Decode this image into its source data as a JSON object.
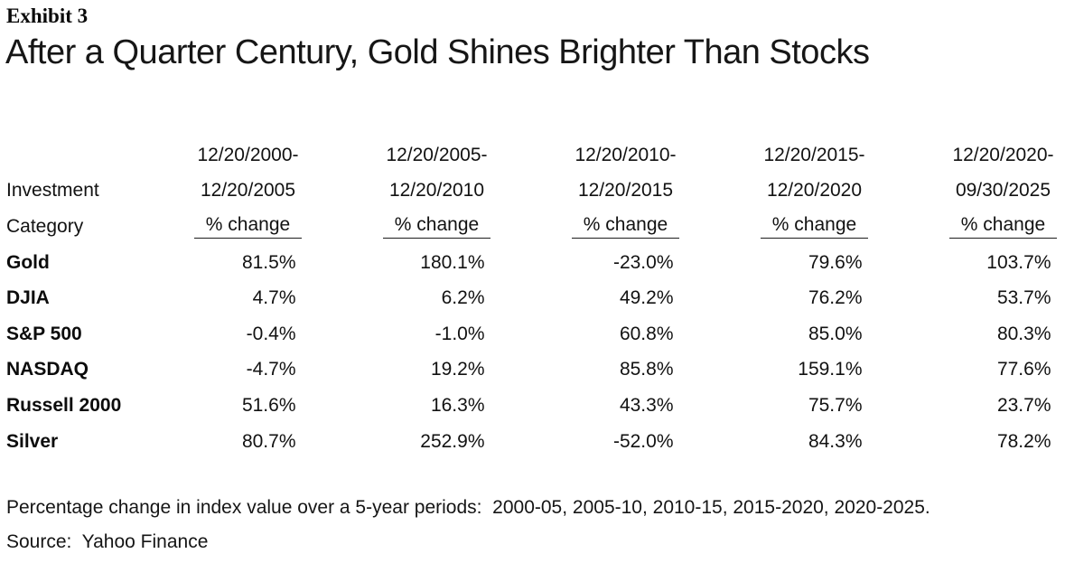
{
  "exhibit": {
    "label": "Exhibit 3"
  },
  "title": "After a Quarter Century, Gold Shines Brighter Than Stocks",
  "table": {
    "row_header": {
      "line1": "Investment",
      "line2": "Category"
    },
    "pct_label": "% change",
    "periods": [
      {
        "line1": "12/20/2000-",
        "line2": "12/20/2005"
      },
      {
        "line1": "12/20/2005-",
        "line2": "12/20/2010"
      },
      {
        "line1": "12/20/2010-",
        "line2": "12/20/2015"
      },
      {
        "line1": "12/20/2015-",
        "line2": "12/20/2020"
      },
      {
        "line1": "12/20/2020-",
        "line2": "09/30/2025"
      }
    ],
    "rows": [
      {
        "name": "Gold",
        "values": [
          "81.5%",
          "180.1%",
          "-23.0%",
          "79.6%",
          "103.7%"
        ]
      },
      {
        "name": "DJIA",
        "values": [
          "4.7%",
          "6.2%",
          "49.2%",
          "76.2%",
          "53.7%"
        ]
      },
      {
        "name": "S&P 500",
        "values": [
          "-0.4%",
          "-1.0%",
          "60.8%",
          "85.0%",
          "80.3%"
        ]
      },
      {
        "name": "NASDAQ",
        "values": [
          "-4.7%",
          "19.2%",
          "85.8%",
          "159.1%",
          "77.6%"
        ]
      },
      {
        "name": "Russell 2000",
        "values": [
          "51.6%",
          "16.3%",
          "43.3%",
          "75.7%",
          "23.7%"
        ]
      },
      {
        "name": "Silver",
        "values": [
          "80.7%",
          "252.9%",
          "-52.0%",
          "84.3%",
          "78.2%"
        ]
      }
    ]
  },
  "footnote": "Percentage change in index value over a 5-year periods:  2000-05, 2005-10, 2010-15, 2015-2020, 2020-2025.",
  "source": "Source:  Yahoo Finance",
  "colors": {
    "background": "#ffffff",
    "text": "#121212"
  },
  "chart_data": {
    "type": "table",
    "title": "After a Quarter Century, Gold Shines Brighter Than Stocks",
    "exhibit": "Exhibit 3",
    "unit": "% change",
    "categories": [
      "12/20/2000-12/20/2005",
      "12/20/2005-12/20/2010",
      "12/20/2010-12/20/2015",
      "12/20/2015-12/20/2020",
      "12/20/2020-09/30/2025"
    ],
    "series": [
      {
        "name": "Gold",
        "values": [
          81.5,
          180.1,
          -23.0,
          79.6,
          103.7
        ]
      },
      {
        "name": "DJIA",
        "values": [
          4.7,
          6.2,
          49.2,
          76.2,
          53.7
        ]
      },
      {
        "name": "S&P 500",
        "values": [
          -0.4,
          -1.0,
          60.8,
          85.0,
          80.3
        ]
      },
      {
        "name": "NASDAQ",
        "values": [
          -4.7,
          19.2,
          85.8,
          159.1,
          77.6
        ]
      },
      {
        "name": "Russell 2000",
        "values": [
          51.6,
          16.3,
          43.3,
          75.7,
          23.7
        ]
      },
      {
        "name": "Silver",
        "values": [
          80.7,
          252.9,
          -52.0,
          84.3,
          78.2
        ]
      }
    ],
    "footnote": "Percentage change in index value over a 5-year periods: 2000-05, 2005-10, 2010-15, 2015-2020, 2020-2025.",
    "source": "Yahoo Finance"
  }
}
